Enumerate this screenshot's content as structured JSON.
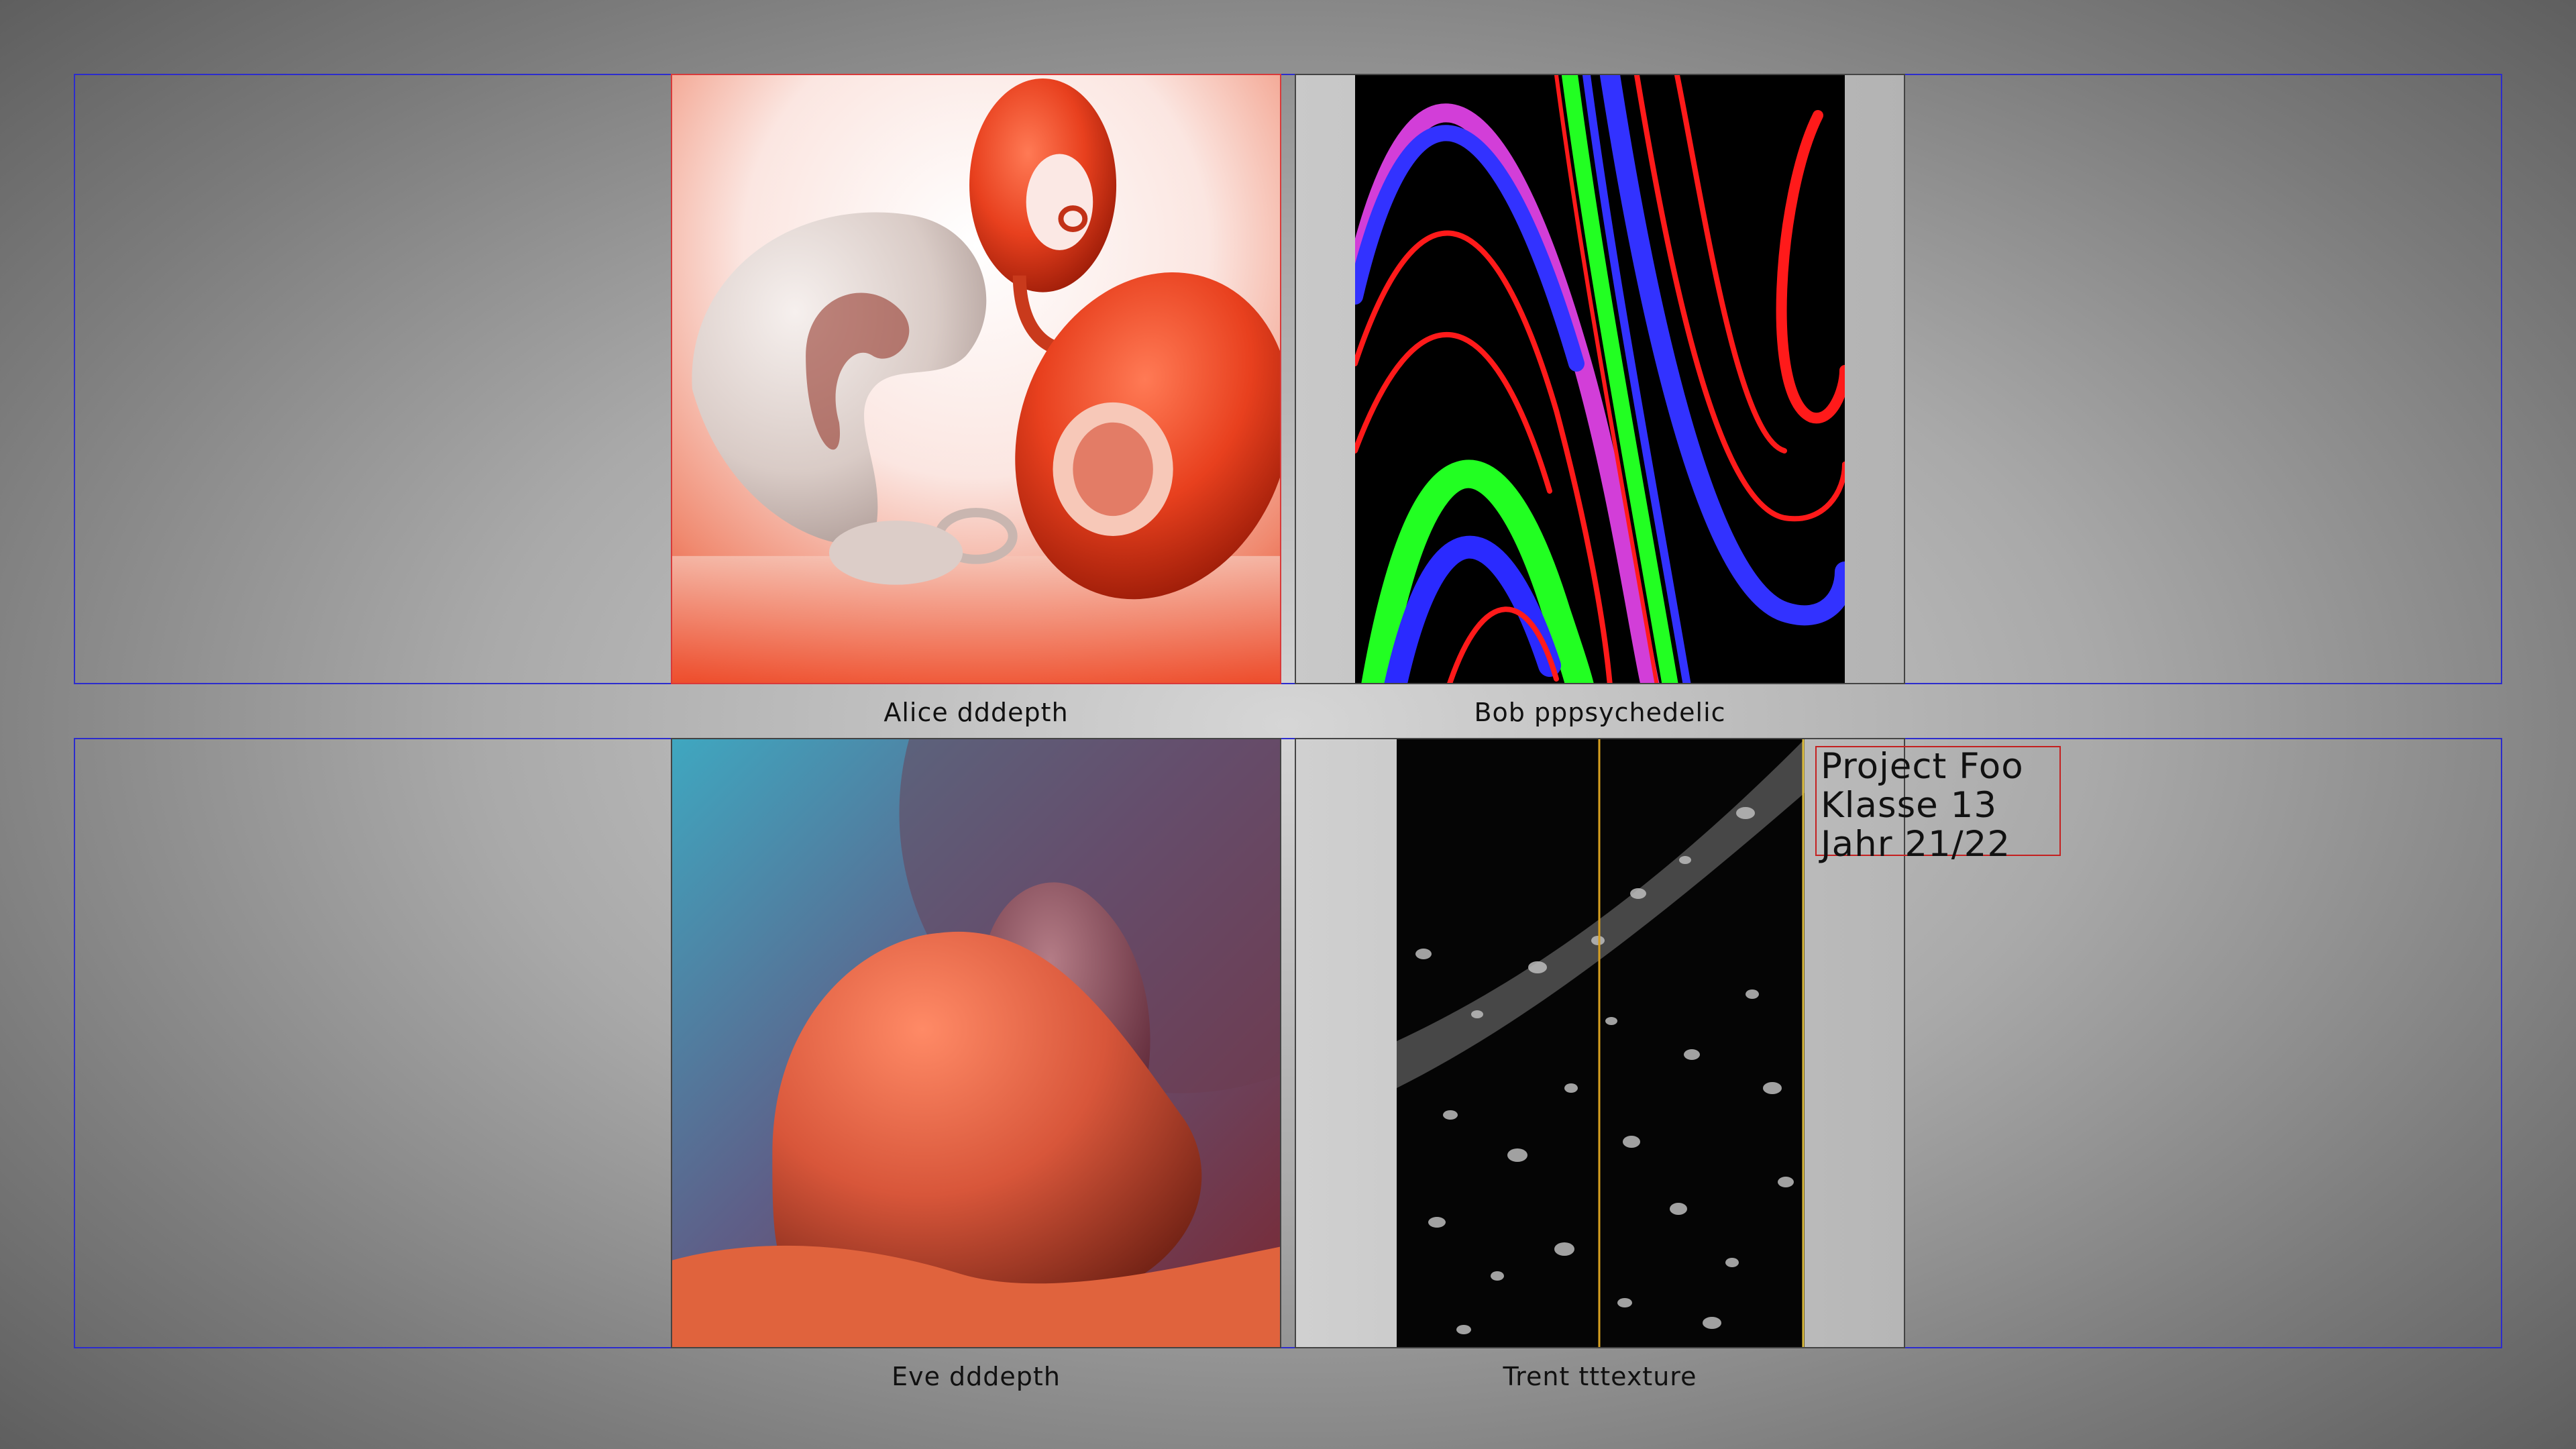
{
  "gallery": {
    "items": [
      {
        "caption": "Alice dddepth"
      },
      {
        "caption": "Bob pppsychedelic"
      },
      {
        "caption": "Eve dddepth"
      },
      {
        "caption": "Trent tttexture"
      }
    ]
  },
  "info": {
    "lines": [
      "Project Foo",
      "Klasse 13",
      "Jahr 21/22"
    ]
  },
  "colors": {
    "row_frame": "#2c2ccd",
    "info_border": "#c42020",
    "alice_border": "#d83a3a",
    "trent_guides": "#d8a020"
  }
}
